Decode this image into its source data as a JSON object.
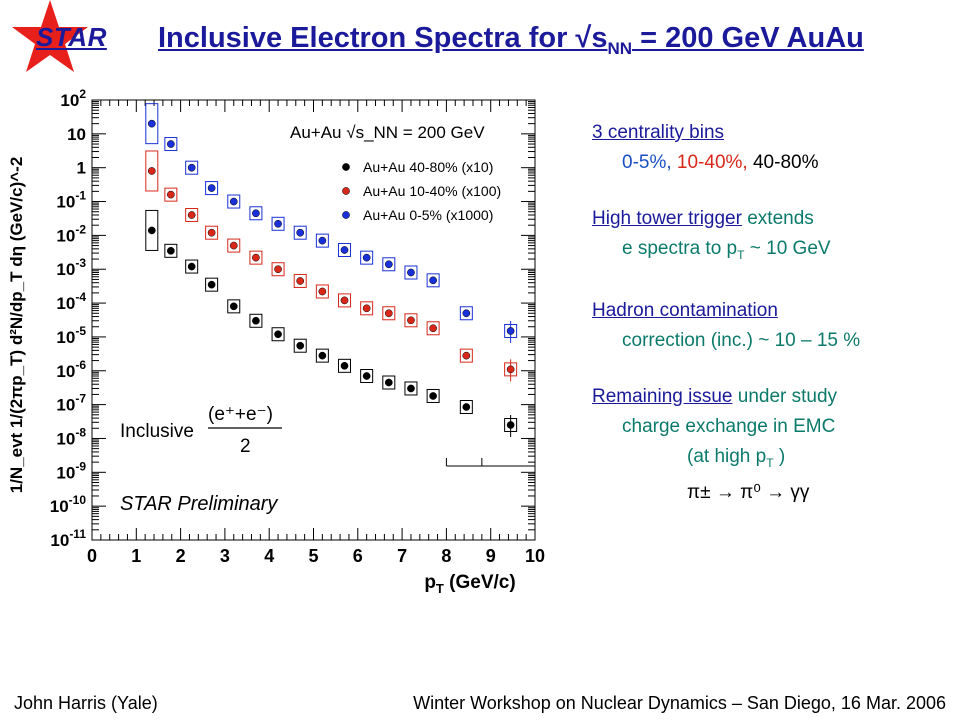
{
  "logo": {
    "text": "STAR",
    "star_color": "#e8201c"
  },
  "title": {
    "main": "Inclusive Electron Spectra for √s",
    "sub": "NN",
    "rest": " = 200 GeV AuAu"
  },
  "chart_data": {
    "type": "scatter",
    "title": "",
    "xlabel": "p_T (GeV/c)",
    "ylabel": "1/N_evt 1/(2πp_T) d²N/dp_T dη (GeV/c)^-2",
    "x_ticks": [
      "0",
      "1",
      "2",
      "3",
      "4",
      "5",
      "6",
      "7",
      "8",
      "9",
      "10"
    ],
    "y_ticks": [
      "10-11",
      "10-10",
      "10-9",
      "10-8",
      "10-7",
      "10-6",
      "10-5",
      "10-4",
      "10-3",
      "10-2",
      "10-1",
      "1",
      "10",
      "10²"
    ],
    "xlim": [
      0,
      10
    ],
    "ylim": [
      1e-11,
      100
    ],
    "y_log": true,
    "legend_position": "top-right",
    "legend_header": "Au+Au √s_NN = 200 GeV",
    "annotations": [
      "Inclusive",
      "(e⁺+e⁻)",
      "2",
      "STAR Preliminary"
    ],
    "series": [
      {
        "name": "Au+Au 40-80% (x10)",
        "color": "#000000",
        "x": [
          1.35,
          1.78,
          2.25,
          2.7,
          3.2,
          3.7,
          4.2,
          4.7,
          5.2,
          5.7,
          6.2,
          6.7,
          7.2,
          7.7,
          8.45,
          9.45
        ],
        "y": [
          0.014,
          0.0035,
          0.0012,
          0.00035,
          8e-05,
          3e-05,
          1.2e-05,
          5.5e-06,
          2.8e-06,
          1.4e-06,
          7e-07,
          4.5e-07,
          3e-07,
          1.8e-07,
          8.5e-08,
          2.5e-08
        ]
      },
      {
        "name": "Au+Au 10-40% (x100)",
        "color": "#d8281a",
        "x": [
          1.35,
          1.78,
          2.25,
          2.7,
          3.2,
          3.7,
          4.2,
          4.7,
          5.2,
          5.7,
          6.2,
          6.7,
          7.2,
          7.7,
          8.45,
          9.45
        ],
        "y": [
          0.8,
          0.16,
          0.04,
          0.012,
          0.005,
          0.0022,
          0.001,
          0.00045,
          0.00022,
          0.00012,
          7e-05,
          5e-05,
          3.1e-05,
          1.8e-05,
          2.8e-06,
          1.1e-06
        ]
      },
      {
        "name": "Au+Au 0-5% (x1000)",
        "color": "#1a30d8",
        "x": [
          1.35,
          1.78,
          2.25,
          2.7,
          3.2,
          3.7,
          4.2,
          4.7,
          5.2,
          5.7,
          6.2,
          6.7,
          7.2,
          7.7,
          8.45,
          9.45
        ],
        "y": [
          20,
          5,
          1,
          0.25,
          0.1,
          0.045,
          0.022,
          0.012,
          0.007,
          0.0037,
          0.0022,
          0.0014,
          0.0008,
          0.00047,
          5e-05,
          1.5e-05
        ]
      }
    ]
  },
  "notes": {
    "n1": "3 centrality bins",
    "n1_a": "0-5%,",
    "n1_b": "10-40%,",
    "n1_c": "40-80%",
    "n2": "High tower trigger",
    "n2_rest": " extends",
    "n2_b": "e spectra to p",
    "n2_b_sub": "T",
    "n2_b_rest": " ~ 10 GeV",
    "n3": "Hadron contamination",
    "n3_b": "correction (inc.) ~ 10 – 15 %",
    "n4": "Remaining issue",
    "n4_rest": " under study",
    "n4_b": "charge exchange in EMC",
    "n4_c": "(at high p",
    "n4_c_sub": "T",
    "n4_c_rest": " )",
    "n4_d": "π± → π⁰ → γγ"
  },
  "footer": {
    "left": "John Harris (Yale)",
    "right": "Winter Workshop on Nuclear Dynamics – San Diego, 16 Mar. 2006"
  }
}
